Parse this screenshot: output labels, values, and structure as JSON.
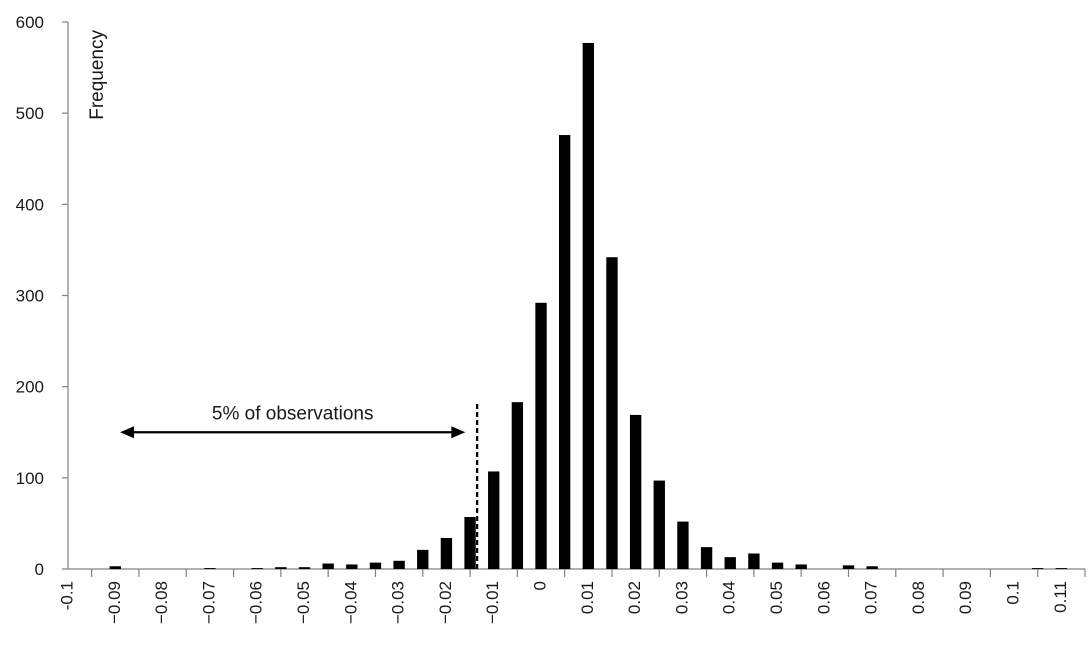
{
  "chart_data": {
    "type": "bar",
    "title": "",
    "xlabel": "",
    "ylabel": "Frequency",
    "ylim": [
      0,
      600
    ],
    "yticks": [
      0,
      100,
      200,
      300,
      400,
      500,
      600
    ],
    "xlim": [
      -0.1,
      0.115
    ],
    "bin_width": 0.005,
    "xtick_values": [
      -0.1,
      -0.09,
      -0.08,
      -0.07,
      -0.06,
      -0.05,
      -0.04,
      -0.03,
      -0.02,
      -0.01,
      0,
      0.01,
      0.02,
      0.03,
      0.04,
      0.05,
      0.06,
      0.07,
      0.08,
      0.09,
      0.1,
      0.11
    ],
    "xtick_labels": [
      "-0.1",
      "−0.09",
      "−0.08",
      "−0.07",
      "−0.06",
      "−0.05",
      "−0.04",
      "−0.03",
      "−0.02",
      "−0.01",
      "0",
      "0.01",
      "0.02",
      "0.03",
      "0.04",
      "0.05",
      "0.06",
      "0.07",
      "0.08",
      "0.09",
      "0.1",
      "0.11"
    ],
    "bar_centers": [
      -0.09,
      -0.07,
      -0.06,
      -0.055,
      -0.05,
      -0.045,
      -0.04,
      -0.035,
      -0.03,
      -0.025,
      -0.02,
      -0.015,
      -0.01,
      -0.005,
      0,
      0.005,
      0.01,
      0.015,
      0.02,
      0.025,
      0.03,
      0.035,
      0.04,
      0.045,
      0.05,
      0.055,
      0.065,
      0.07,
      0.105,
      0.11
    ],
    "values": [
      3,
      1,
      1,
      2,
      2,
      6,
      5,
      7,
      9,
      21,
      34,
      57,
      107,
      183,
      292,
      476,
      577,
      342,
      169,
      97,
      52,
      24,
      13,
      17,
      7,
      5,
      4,
      3,
      1,
      1
    ],
    "grid": false,
    "legend": "none",
    "bar_color": "#000000",
    "var_line": {
      "x": -0.0135,
      "style": "dashed"
    },
    "annotation": {
      "text": "5% of observations",
      "arrow_from": -0.089,
      "arrow_to": -0.016,
      "arrow_y": 150
    }
  }
}
